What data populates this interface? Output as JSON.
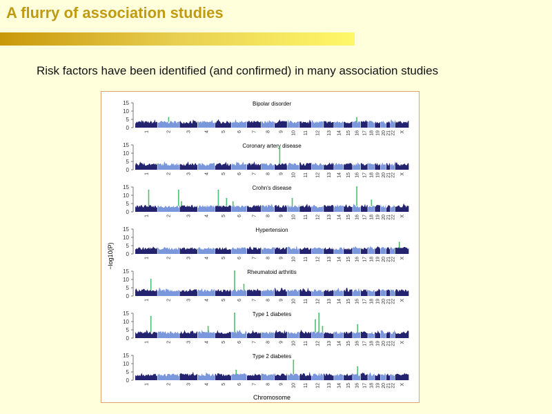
{
  "slide": {
    "title": "A flurry of association studies",
    "subtitle": "Risk factors have been identified (and confirmed) in many association studies"
  },
  "colors": {
    "dark": "#232370",
    "light": "#7a97dc",
    "hit": "#4cc070",
    "title": "#c09a10"
  },
  "chart_data": {
    "type": "scatter",
    "subtype": "manhattan",
    "xlabel": "Chromosome",
    "ylabel": "−log10(P)",
    "ylim": [
      0,
      15
    ],
    "yticks": [
      0,
      5,
      10,
      15
    ],
    "chromosomes": [
      {
        "name": "1",
        "length": 247
      },
      {
        "name": "2",
        "length": 243
      },
      {
        "name": "3",
        "length": 199
      },
      {
        "name": "4",
        "length": 191
      },
      {
        "name": "5",
        "length": 181
      },
      {
        "name": "6",
        "length": 171
      },
      {
        "name": "7",
        "length": 159
      },
      {
        "name": "8",
        "length": 146
      },
      {
        "name": "9",
        "length": 140
      },
      {
        "name": "10",
        "length": 135
      },
      {
        "name": "11",
        "length": 134
      },
      {
        "name": "12",
        "length": 132
      },
      {
        "name": "13",
        "length": 114
      },
      {
        "name": "14",
        "length": 106
      },
      {
        "name": "15",
        "length": 100
      },
      {
        "name": "16",
        "length": 89
      },
      {
        "name": "17",
        "length": 79
      },
      {
        "name": "18",
        "length": 76
      },
      {
        "name": "19",
        "length": 64
      },
      {
        "name": "20",
        "length": 62
      },
      {
        "name": "21",
        "length": 47
      },
      {
        "name": "22",
        "length": 50
      },
      {
        "name": "X",
        "length": 155
      }
    ],
    "panels": [
      {
        "title": "Bipolar disorder",
        "hits": [
          {
            "chr": "2",
            "pos": 0.5,
            "value": 6
          },
          {
            "chr": "16",
            "pos": 0.5,
            "value": 6
          }
        ]
      },
      {
        "title": "Coronary artery disease",
        "hits": [
          {
            "chr": "9",
            "pos": 0.4,
            "value": 14
          }
        ]
      },
      {
        "title": "Crohn's disease",
        "hits": [
          {
            "chr": "1",
            "pos": 0.6,
            "value": 13
          },
          {
            "chr": "2",
            "pos": 0.95,
            "value": 13
          },
          {
            "chr": "3",
            "pos": 0.1,
            "value": 6
          },
          {
            "chr": "5",
            "pos": 0.2,
            "value": 13
          },
          {
            "chr": "5",
            "pos": 0.7,
            "value": 8
          },
          {
            "chr": "6",
            "pos": 0.1,
            "value": 6
          },
          {
            "chr": "10",
            "pos": 0.4,
            "value": 8
          },
          {
            "chr": "16",
            "pos": 0.5,
            "value": 15
          },
          {
            "chr": "18",
            "pos": 0.5,
            "value": 7
          }
        ]
      },
      {
        "title": "Hypertension",
        "hits": [
          {
            "chr": "X",
            "pos": 0.3,
            "value": 7
          }
        ]
      },
      {
        "title": "Rheumatoid arthritis",
        "hits": [
          {
            "chr": "1",
            "pos": 0.7,
            "value": 10
          },
          {
            "chr": "6",
            "pos": 0.2,
            "value": 15
          },
          {
            "chr": "6",
            "pos": 0.8,
            "value": 7
          }
        ]
      },
      {
        "title": "Type 1 diabetes",
        "hits": [
          {
            "chr": "1",
            "pos": 0.7,
            "value": 13
          },
          {
            "chr": "4",
            "pos": 0.6,
            "value": 7
          },
          {
            "chr": "6",
            "pos": 0.2,
            "value": 15
          },
          {
            "chr": "12",
            "pos": 0.3,
            "value": 11
          },
          {
            "chr": "12",
            "pos": 0.6,
            "value": 15
          },
          {
            "chr": "12",
            "pos": 0.9,
            "value": 7
          },
          {
            "chr": "16",
            "pos": 0.6,
            "value": 8
          }
        ]
      },
      {
        "title": "Type 2 diabetes",
        "hits": [
          {
            "chr": "6",
            "pos": 0.3,
            "value": 6
          },
          {
            "chr": "10",
            "pos": 0.5,
            "value": 12
          },
          {
            "chr": "16",
            "pos": 0.6,
            "value": 8
          }
        ]
      }
    ]
  }
}
